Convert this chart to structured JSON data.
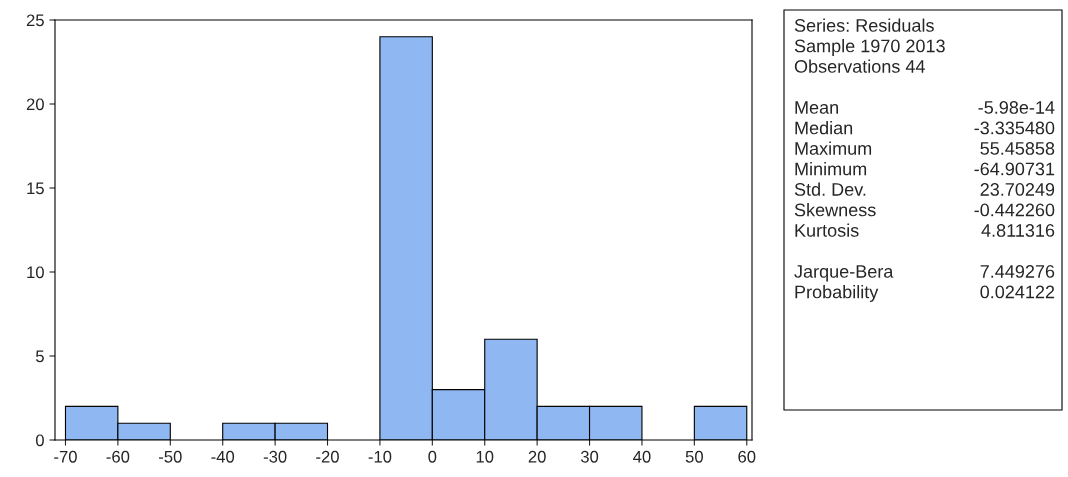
{
  "chart_data": {
    "type": "histogram",
    "bins": [
      -70,
      -60,
      -50,
      -40,
      -30,
      -20,
      -10,
      0,
      10,
      20,
      30,
      40,
      50,
      60
    ],
    "values": [
      2,
      1,
      0,
      1,
      1,
      0,
      24,
      3,
      6,
      2,
      2,
      0,
      2
    ],
    "color": "#8fb8f2",
    "xlim": [
      -72,
      61
    ],
    "ylim": [
      0,
      25
    ],
    "xticks": [
      -70,
      -60,
      -50,
      -40,
      -30,
      -20,
      -10,
      0,
      10,
      20,
      30,
      40,
      50,
      60
    ],
    "yticks": [
      0,
      5,
      10,
      15,
      20,
      25
    ],
    "grid": false,
    "annotations": [
      "Series: Residuals",
      "Sample 1970 2013",
      "Observations 44",
      "Mean",
      "-5.98e-14",
      "Median",
      "-3.335480",
      "Maximum",
      "55.45858",
      "Minimum",
      "-64.90731",
      "Std. Dev.",
      "23.70249",
      "Skewness",
      "-0.442260",
      "Kurtosis",
      "4.811316",
      "Jarque-Bera",
      "7.449276",
      "Probability",
      "0.024122"
    ]
  }
}
